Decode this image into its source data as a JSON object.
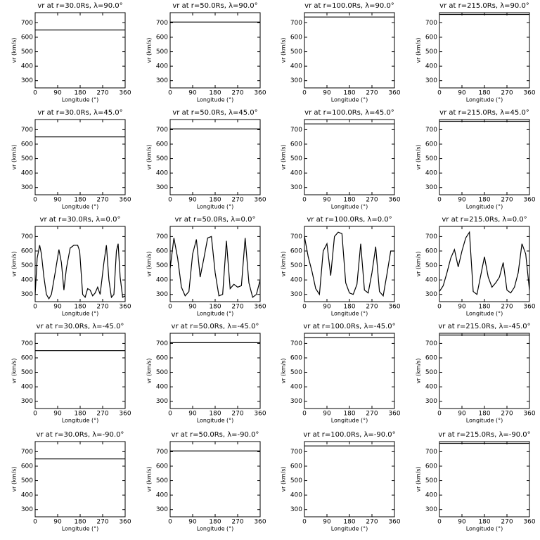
{
  "chart_data": [
    {
      "type": "line",
      "title": "vr at r=30.0Rs, λ=90.0°",
      "xlabel": "Longitude (°)",
      "ylabel": "vr (km/s)",
      "x": [
        0,
        360
      ],
      "values": [
        650,
        650
      ],
      "color": "#000000",
      "xlim": [
        0,
        360
      ],
      "xticks": [
        0,
        90,
        180,
        270,
        360
      ],
      "ylim": [
        250,
        770
      ],
      "yticks": [
        300,
        400,
        500,
        600,
        700
      ]
    },
    {
      "type": "line",
      "title": "vr at r=50.0Rs, λ=90.0°",
      "xlabel": "Longitude (°)",
      "ylabel": "vr (km/s)",
      "x": [
        0,
        360
      ],
      "values": [
        705,
        705
      ],
      "color": "#000000",
      "xlim": [
        0,
        360
      ],
      "xticks": [
        0,
        90,
        180,
        270,
        360
      ],
      "ylim": [
        250,
        770
      ],
      "yticks": [
        300,
        400,
        500,
        600,
        700
      ]
    },
    {
      "type": "line",
      "title": "vr at r=100.0Rs, λ=90.0°",
      "xlabel": "Longitude (°)",
      "ylabel": "vr (km/s)",
      "x": [
        0,
        360
      ],
      "values": [
        740,
        740
      ],
      "color": "#000000",
      "xlim": [
        0,
        360
      ],
      "xticks": [
        0,
        90,
        180,
        270,
        360
      ],
      "ylim": [
        250,
        770
      ],
      "yticks": [
        300,
        400,
        500,
        600,
        700
      ]
    },
    {
      "type": "line",
      "title": "vr at r=215.0Rs, λ=90.0°",
      "xlabel": "Longitude (°)",
      "ylabel": "vr (km/s)",
      "x": [
        0,
        360
      ],
      "values": [
        758,
        758
      ],
      "color": "#000000",
      "xlim": [
        0,
        360
      ],
      "xticks": [
        0,
        90,
        180,
        270,
        360
      ],
      "ylim": [
        250,
        770
      ],
      "yticks": [
        300,
        400,
        500,
        600,
        700
      ]
    },
    {
      "type": "line",
      "title": "vr at r=30.0Rs, λ=45.0°",
      "xlabel": "Longitude (°)",
      "ylabel": "vr (km/s)",
      "x": [
        0,
        360
      ],
      "values": [
        650,
        650
      ],
      "color": "#000000",
      "xlim": [
        0,
        360
      ],
      "xticks": [
        0,
        90,
        180,
        270,
        360
      ],
      "ylim": [
        250,
        770
      ],
      "yticks": [
        300,
        400,
        500,
        600,
        700
      ]
    },
    {
      "type": "line",
      "title": "vr at r=50.0Rs, λ=45.0°",
      "xlabel": "Longitude (°)",
      "ylabel": "vr (km/s)",
      "x": [
        0,
        360
      ],
      "values": [
        705,
        705
      ],
      "color": "#000000",
      "xlim": [
        0,
        360
      ],
      "xticks": [
        0,
        90,
        180,
        270,
        360
      ],
      "ylim": [
        250,
        770
      ],
      "yticks": [
        300,
        400,
        500,
        600,
        700
      ]
    },
    {
      "type": "line",
      "title": "vr at r=100.0Rs, λ=45.0°",
      "xlabel": "Longitude (°)",
      "ylabel": "vr (km/s)",
      "x": [
        0,
        360
      ],
      "values": [
        740,
        740
      ],
      "color": "#000000",
      "xlim": [
        0,
        360
      ],
      "xticks": [
        0,
        90,
        180,
        270,
        360
      ],
      "ylim": [
        250,
        770
      ],
      "yticks": [
        300,
        400,
        500,
        600,
        700
      ]
    },
    {
      "type": "line",
      "title": "vr at r=215.0Rs, λ=45.0°",
      "xlabel": "Longitude (°)",
      "ylabel": "vr (km/s)",
      "x": [
        0,
        360
      ],
      "values": [
        758,
        758
      ],
      "color": "#000000",
      "xlim": [
        0,
        360
      ],
      "xticks": [
        0,
        90,
        180,
        270,
        360
      ],
      "ylim": [
        250,
        770
      ],
      "yticks": [
        300,
        400,
        500,
        600,
        700
      ]
    },
    {
      "type": "line",
      "title": "vr at r=30.0Rs, λ=0.0°",
      "xlabel": "Longitude (°)",
      "ylabel": "vr (km/s)",
      "x": [
        0,
        8,
        18,
        25,
        35,
        45,
        55,
        65,
        80,
        95,
        105,
        115,
        125,
        140,
        155,
        170,
        178,
        190,
        200,
        210,
        220,
        230,
        240,
        250,
        260,
        275,
        285,
        295,
        305,
        315,
        325,
        332,
        340,
        350,
        360
      ],
      "values": [
        300,
        550,
        640,
        580,
        420,
        300,
        270,
        300,
        450,
        610,
        520,
        330,
        480,
        620,
        640,
        640,
        600,
        300,
        280,
        340,
        330,
        290,
        310,
        350,
        300,
        520,
        640,
        400,
        280,
        300,
        600,
        650,
        420,
        280,
        290
      ],
      "color": "#000000",
      "xlim": [
        0,
        360
      ],
      "xticks": [
        0,
        90,
        180,
        270,
        360
      ],
      "ylim": [
        250,
        770
      ],
      "yticks": [
        300,
        400,
        500,
        600,
        700
      ]
    },
    {
      "type": "line",
      "title": "vr at r=50.0Rs, λ=0.0°",
      "xlabel": "Longitude (°)",
      "ylabel": "vr (km/s)",
      "x": [
        0,
        15,
        30,
        45,
        60,
        75,
        90,
        105,
        120,
        135,
        150,
        165,
        180,
        195,
        210,
        225,
        240,
        255,
        270,
        285,
        300,
        315,
        330,
        345,
        360
      ],
      "values": [
        480,
        690,
        550,
        350,
        290,
        320,
        580,
        680,
        420,
        550,
        690,
        700,
        450,
        290,
        300,
        670,
        340,
        370,
        350,
        360,
        690,
        380,
        280,
        300,
        400
      ],
      "color": "#000000",
      "xlim": [
        0,
        360
      ],
      "xticks": [
        0,
        90,
        180,
        270,
        360
      ],
      "ylim": [
        250,
        770
      ],
      "yticks": [
        300,
        400,
        500,
        600,
        700
      ]
    },
    {
      "type": "line",
      "title": "vr at r=100.0Rs, λ=0.0°",
      "xlabel": "Longitude (°)",
      "ylabel": "vr (km/s)",
      "x": [
        0,
        15,
        30,
        45,
        60,
        75,
        90,
        105,
        120,
        135,
        150,
        165,
        180,
        195,
        210,
        225,
        240,
        255,
        270,
        285,
        300,
        315,
        330,
        345,
        360
      ],
      "values": [
        700,
        560,
        460,
        340,
        300,
        600,
        650,
        430,
        700,
        730,
        720,
        380,
        310,
        300,
        370,
        650,
        330,
        310,
        450,
        630,
        320,
        290,
        440,
        600,
        600
      ],
      "color": "#000000",
      "xlim": [
        0,
        360
      ],
      "xticks": [
        0,
        90,
        180,
        270,
        360
      ],
      "ylim": [
        250,
        770
      ],
      "yticks": [
        300,
        400,
        500,
        600,
        700
      ]
    },
    {
      "type": "line",
      "title": "vr at r=215.0Rs, λ=0.0°",
      "xlabel": "Longitude (°)",
      "ylabel": "vr (km/s)",
      "x": [
        0,
        15,
        30,
        45,
        60,
        75,
        90,
        105,
        120,
        135,
        150,
        165,
        180,
        195,
        210,
        225,
        240,
        255,
        270,
        285,
        300,
        315,
        330,
        345,
        360
      ],
      "values": [
        320,
        360,
        450,
        550,
        610,
        490,
        600,
        690,
        730,
        320,
        300,
        430,
        560,
        420,
        350,
        380,
        420,
        520,
        330,
        310,
        350,
        450,
        650,
        580,
        330
      ],
      "color": "#000000",
      "xlim": [
        0,
        360
      ],
      "xticks": [
        0,
        90,
        180,
        270,
        360
      ],
      "ylim": [
        250,
        770
      ],
      "yticks": [
        300,
        400,
        500,
        600,
        700
      ]
    },
    {
      "type": "line",
      "title": "vr at r=30.0Rs, λ=-45.0°",
      "xlabel": "Longitude (°)",
      "ylabel": "vr (km/s)",
      "x": [
        0,
        360
      ],
      "values": [
        650,
        650
      ],
      "color": "#000000",
      "xlim": [
        0,
        360
      ],
      "xticks": [
        0,
        90,
        180,
        270,
        360
      ],
      "ylim": [
        250,
        770
      ],
      "yticks": [
        300,
        400,
        500,
        600,
        700
      ]
    },
    {
      "type": "line",
      "title": "vr at r=50.0Rs, λ=-45.0°",
      "xlabel": "Longitude (°)",
      "ylabel": "vr (km/s)",
      "x": [
        0,
        360
      ],
      "values": [
        705,
        705
      ],
      "color": "#000000",
      "xlim": [
        0,
        360
      ],
      "xticks": [
        0,
        90,
        180,
        270,
        360
      ],
      "ylim": [
        250,
        770
      ],
      "yticks": [
        300,
        400,
        500,
        600,
        700
      ]
    },
    {
      "type": "line",
      "title": "vr at r=100.0Rs, λ=-45.0°",
      "xlabel": "Longitude (°)",
      "ylabel": "vr (km/s)",
      "x": [
        0,
        360
      ],
      "values": [
        740,
        740
      ],
      "color": "#000000",
      "xlim": [
        0,
        360
      ],
      "xticks": [
        0,
        90,
        180,
        270,
        360
      ],
      "ylim": [
        250,
        770
      ],
      "yticks": [
        300,
        400,
        500,
        600,
        700
      ]
    },
    {
      "type": "line",
      "title": "vr at r=215.0Rs, λ=-45.0°",
      "xlabel": "Longitude (°)",
      "ylabel": "vr (km/s)",
      "x": [
        0,
        360
      ],
      "values": [
        758,
        758
      ],
      "color": "#000000",
      "xlim": [
        0,
        360
      ],
      "xticks": [
        0,
        90,
        180,
        270,
        360
      ],
      "ylim": [
        250,
        770
      ],
      "yticks": [
        300,
        400,
        500,
        600,
        700
      ]
    },
    {
      "type": "line",
      "title": "vr at r=30.0Rs, λ=-90.0°",
      "xlabel": "Longitude (°)",
      "ylabel": "vr (km/s)",
      "x": [
        0,
        360
      ],
      "values": [
        650,
        650
      ],
      "color": "#000000",
      "xlim": [
        0,
        360
      ],
      "xticks": [
        0,
        90,
        180,
        270,
        360
      ],
      "ylim": [
        250,
        770
      ],
      "yticks": [
        300,
        400,
        500,
        600,
        700
      ]
    },
    {
      "type": "line",
      "title": "vr at r=50.0Rs, λ=-90.0°",
      "xlabel": "Longitude (°)",
      "ylabel": "vr (km/s)",
      "x": [
        0,
        360
      ],
      "values": [
        705,
        705
      ],
      "color": "#000000",
      "xlim": [
        0,
        360
      ],
      "xticks": [
        0,
        90,
        180,
        270,
        360
      ],
      "ylim": [
        250,
        770
      ],
      "yticks": [
        300,
        400,
        500,
        600,
        700
      ]
    },
    {
      "type": "line",
      "title": "vr at r=100.0Rs, λ=-90.0°",
      "xlabel": "Longitude (°)",
      "ylabel": "vr (km/s)",
      "x": [
        0,
        360
      ],
      "values": [
        740,
        740
      ],
      "color": "#000000",
      "xlim": [
        0,
        360
      ],
      "xticks": [
        0,
        90,
        180,
        270,
        360
      ],
      "ylim": [
        250,
        770
      ],
      "yticks": [
        300,
        400,
        500,
        600,
        700
      ]
    },
    {
      "type": "line",
      "title": "vr at r=215.0Rs, λ=-90.0°",
      "xlabel": "Longitude (°)",
      "ylabel": "vr (km/s)",
      "x": [
        0,
        360
      ],
      "values": [
        758,
        758
      ],
      "color": "#000000",
      "xlim": [
        0,
        360
      ],
      "xticks": [
        0,
        90,
        180,
        270,
        360
      ],
      "ylim": [
        250,
        770
      ],
      "yticks": [
        300,
        400,
        500,
        600,
        700
      ]
    }
  ]
}
